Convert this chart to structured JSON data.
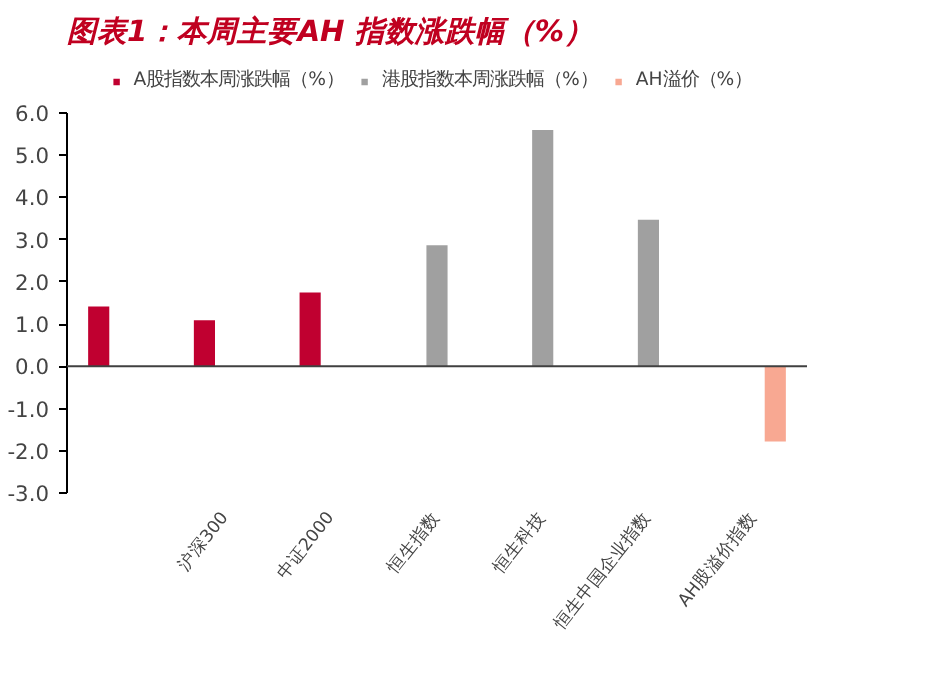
{
  "chart_data": {
    "type": "bar",
    "title": "图表1：本周主要AH 指数涨跌幅（%）",
    "categories": [
      null,
      "沪深300",
      "中证2000",
      "恒生指数",
      "恒生科技",
      "恒生中国企业指数",
      "AH股溢价指数"
    ],
    "series": [
      {
        "name": "A股指数本周涨跌幅（%）",
        "color": "#c00030",
        "values": [
          1.42,
          1.09,
          1.75,
          null,
          null,
          null,
          null
        ]
      },
      {
        "name": "港股指数本周涨跌幅（%）",
        "color": "#a0a0a0",
        "values": [
          null,
          null,
          null,
          2.87,
          5.6,
          3.47,
          null
        ]
      },
      {
        "name": "AH溢价（%）",
        "color": "#f8a892",
        "values": [
          null,
          null,
          null,
          null,
          null,
          null,
          -1.78
        ]
      }
    ],
    "ylim": [
      -3,
      6
    ],
    "yticks": [
      {
        "value": -3,
        "label": "-3.0"
      },
      {
        "value": -2,
        "label": "-2.0"
      },
      {
        "value": -1,
        "label": "-1.0"
      },
      {
        "value": 0,
        "label": "0.0"
      },
      {
        "value": 1,
        "label": "1.0"
      },
      {
        "value": 2,
        "label": "2.0"
      },
      {
        "value": 3,
        "label": "3.0"
      },
      {
        "value": 4,
        "label": "4.0"
      },
      {
        "value": 5,
        "label": "5.0"
      },
      {
        "value": 6,
        "label": "6.0"
      }
    ],
    "legend": "top"
  }
}
